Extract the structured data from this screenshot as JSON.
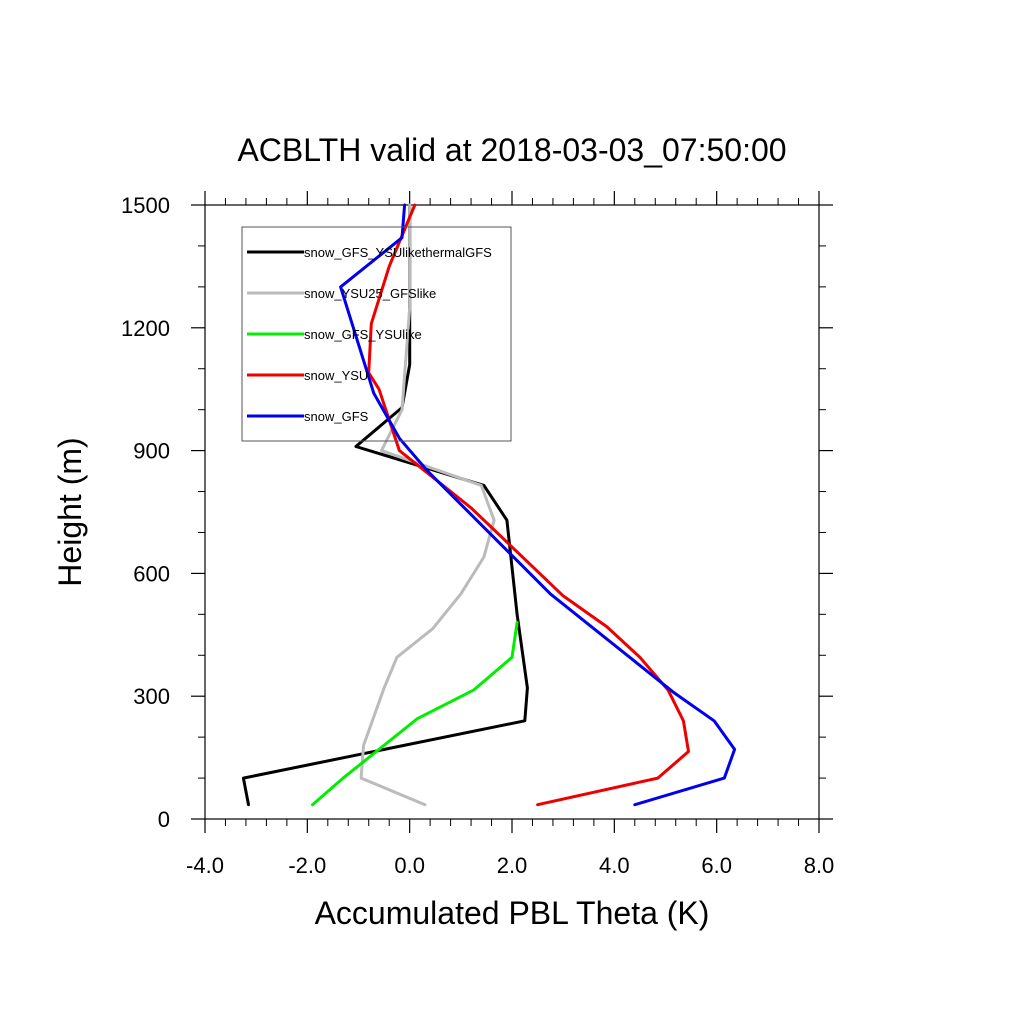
{
  "chart_data": {
    "type": "line",
    "title": "ACBLTH valid at 2018-03-03_07:50:00",
    "xlabel": "Accumulated PBL Theta (K)",
    "ylabel": "Height (m)",
    "xlim": [
      -4.0,
      8.0
    ],
    "ylim": [
      0,
      1500
    ],
    "xticks": [
      -4.0,
      -2.0,
      0.0,
      2.0,
      4.0,
      6.0,
      8.0
    ],
    "xtick_labels": [
      "-4.0",
      "-2.0",
      "0.0",
      "2.0",
      "4.0",
      "6.0",
      "8.0"
    ],
    "yticks": [
      0,
      300,
      600,
      900,
      1200,
      1500
    ],
    "ytick_labels": [
      "0",
      "300",
      "600",
      "900",
      "1200",
      "1500"
    ],
    "grid": false,
    "legend_position": "top-left",
    "series": [
      {
        "name": "snow_GFS_YSUlikethermalGFS",
        "color": "#000000",
        "x": [
          -3.15,
          -3.25,
          2.25,
          2.3,
          2.1,
          1.9,
          1.45,
          -1.05,
          -0.15,
          0.0,
          0.0,
          0.0
        ],
        "y": [
          35,
          100,
          240,
          320,
          500,
          730,
          815,
          910,
          1005,
          1110,
          1250,
          1500
        ]
      },
      {
        "name": "snow_YSU25_GFSlike",
        "color": "#bbbbbb",
        "x": [
          0.3,
          -0.95,
          -0.9,
          -0.5,
          -0.25,
          0.45,
          1.0,
          1.45,
          1.65,
          1.4,
          -0.55,
          -0.15,
          0.0,
          0.0
        ],
        "y": [
          35,
          100,
          180,
          320,
          395,
          465,
          550,
          640,
          730,
          815,
          900,
          1000,
          1250,
          1500
        ]
      },
      {
        "name": "snow_GFS_YSUlike",
        "color": "#00ee00",
        "x": [
          -1.9,
          -1.3,
          0.15,
          1.25,
          2.0,
          2.1
        ],
        "y": [
          35,
          100,
          245,
          315,
          395,
          480
        ]
      },
      {
        "name": "snow_YSU",
        "color": "#ee0000",
        "x": [
          2.5,
          4.85,
          5.45,
          5.35,
          5.05,
          4.5,
          3.85,
          3.0,
          1.2,
          -0.2,
          -0.6,
          -0.8,
          -0.75,
          -0.4,
          0.1
        ],
        "y": [
          35,
          100,
          165,
          240,
          315,
          395,
          470,
          545,
          760,
          900,
          1050,
          1090,
          1210,
          1350,
          1500
        ]
      },
      {
        "name": "snow_GFS",
        "color": "#0000ee",
        "x": [
          4.4,
          6.15,
          6.35,
          5.95,
          5.15,
          2.75,
          0.35,
          -0.2,
          -0.7,
          -1.35,
          -0.15,
          -0.1
        ],
        "y": [
          35,
          100,
          170,
          240,
          310,
          550,
          850,
          930,
          1040,
          1300,
          1420,
          1500
        ]
      }
    ]
  }
}
